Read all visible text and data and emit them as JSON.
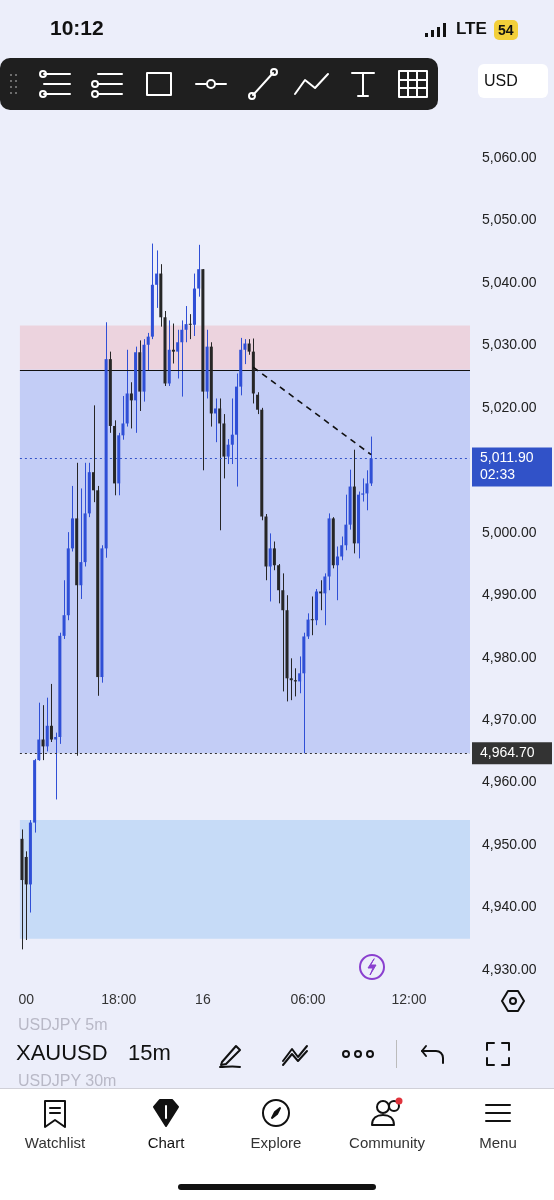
{
  "chart_data": {
    "type": "candlestick",
    "title": "XAUUSD",
    "subtitle": "15m",
    "categories": [
      null,
      "00",
      null,
      null,
      null,
      null,
      null,
      null,
      null,
      null,
      null,
      null,
      null,
      null,
      null,
      null,
      null,
      null,
      null,
      null,
      null,
      null,
      null,
      "18:00",
      null,
      null,
      null,
      null,
      null,
      null,
      null,
      null,
      null,
      null,
      null,
      null,
      null,
      null,
      null,
      null,
      null,
      null,
      null,
      "16",
      null,
      null,
      null,
      null,
      null,
      null,
      null,
      null,
      null,
      null,
      null,
      null,
      null,
      null,
      null,
      null,
      null,
      null,
      null,
      null,
      null,
      null,
      null,
      null,
      "06:00",
      null,
      null,
      null,
      null,
      null,
      null,
      null,
      null,
      null,
      null,
      null,
      null,
      null,
      null,
      null,
      null,
      null,
      null,
      null,
      null,
      null,
      null,
      null,
      "12:00",
      null,
      null,
      null,
      null,
      null,
      null,
      null,
      null,
      null,
      null,
      null,
      null,
      null,
      null
    ],
    "ohlc": [
      [
        4951.0,
        4952.5,
        4933.3,
        4944.4
      ],
      [
        4948.1,
        4949.0,
        4934.8,
        4943.7
      ],
      [
        4943.7,
        4954.0,
        4939.2,
        4953.6
      ],
      [
        4953.6,
        4963.8,
        4952.0,
        4963.6
      ],
      [
        4963.6,
        4972.8,
        4963.5,
        4966.9
      ],
      [
        4966.9,
        4972.4,
        4963.6,
        4965.8
      ],
      [
        4965.8,
        4973.6,
        4965.0,
        4969.1
      ],
      [
        4969.1,
        4975.8,
        4966.5,
        4966.9
      ],
      [
        4966.9,
        4968.0,
        4957.3,
        4967.3
      ],
      [
        4967.3,
        4984.0,
        4966.2,
        4983.5
      ],
      [
        4983.5,
        4992.4,
        4983.0,
        4986.8
      ],
      [
        4986.8,
        5000.1,
        4986.0,
        4997.5
      ],
      [
        4997.5,
        5007.5,
        4997.0,
        5002.3
      ],
      [
        5002.3,
        5011.2,
        4964.3,
        4991.6
      ],
      [
        4991.6,
        5007.1,
        4989.4,
        4995.3
      ],
      [
        4995.3,
        5011.2,
        4994.6,
        5003.1
      ],
      [
        5003.1,
        5011.2,
        5002.5,
        5009.7
      ],
      [
        5009.7,
        5020.4,
        5004.9,
        5006.8
      ],
      [
        5006.8,
        5007.5,
        4973.9,
        4976.9
      ],
      [
        4976.9,
        4998.0,
        4976.0,
        4997.5
      ],
      [
        4997.5,
        5033.7,
        4996.0,
        5027.8
      ],
      [
        5027.8,
        5029.0,
        5016.0,
        5017.1
      ],
      [
        5017.1,
        5018.0,
        5006.0,
        5007.9
      ],
      [
        5007.9,
        5016.0,
        5006.0,
        5015.6
      ],
      [
        5015.6,
        5021.9,
        5014.9,
        5017.5
      ],
      [
        5017.5,
        5029.3,
        5017.0,
        5022.3
      ],
      [
        5022.3,
        5024.1,
        5016.7,
        5021.2
      ],
      [
        5021.2,
        5029.8,
        5016.0,
        5028.9
      ],
      [
        5028.9,
        5030.8,
        5019.5,
        5022.6
      ],
      [
        5022.6,
        5031.0,
        5021.0,
        5030.1
      ],
      [
        5030.1,
        5032.0,
        5026.0,
        5031.4
      ],
      [
        5031.4,
        5046.3,
        5031.0,
        5039.7
      ],
      [
        5039.7,
        5045.2,
        5036.0,
        5041.5
      ],
      [
        5041.5,
        5043.0,
        5033.0,
        5034.5
      ],
      [
        5034.5,
        5035.5,
        5023.5,
        5023.9
      ],
      [
        5023.9,
        5034.0,
        5023.5,
        5029.3
      ],
      [
        5029.3,
        5033.5,
        5027.1,
        5029.0
      ],
      [
        5029.0,
        5032.5,
        5024.7,
        5030.5
      ],
      [
        5030.5,
        5034.0,
        5021.8,
        5032.5
      ],
      [
        5032.5,
        5036.3,
        5030.5,
        5033.4
      ],
      [
        5033.4,
        5035.0,
        5031.0,
        5033.3
      ],
      [
        5033.3,
        5041.5,
        5031.5,
        5039.1
      ],
      [
        5039.1,
        5046.1,
        5037.8,
        5042.2
      ],
      [
        5042.2,
        5042.2,
        5010.0,
        5022.6
      ],
      [
        5022.6,
        5032.5,
        5021.5,
        5029.8
      ],
      [
        5029.8,
        5030.5,
        5017.0,
        5019.1
      ],
      [
        5019.1,
        5021.5,
        5014.5,
        5019.9
      ],
      [
        5019.9,
        5021.5,
        5000.4,
        5017.5
      ],
      [
        5017.5,
        5019.0,
        5008.7,
        5012.2
      ],
      [
        5012.2,
        5015.0,
        5011.0,
        5014.1
      ],
      [
        5014.1,
        5021.5,
        5011.0,
        5015.7
      ],
      [
        5015.7,
        5025.5,
        5007.4,
        5023.4
      ],
      [
        5023.4,
        5031.2,
        5022.0,
        5029.3
      ],
      [
        5029.3,
        5031.0,
        5027.0,
        5030.3
      ],
      [
        5030.3,
        5031.0,
        5028.5,
        5029.0
      ],
      [
        5029.0,
        5031.1,
        5020.7,
        5022.3
      ],
      [
        5022.1,
        5022.5,
        5019.0,
        5019.7
      ],
      [
        5019.7,
        5020.0,
        5002.0,
        5002.6
      ],
      [
        5002.6,
        5003.0,
        4992.4,
        4994.6
      ],
      [
        4994.6,
        4999.9,
        4989.0,
        4997.5
      ],
      [
        4997.5,
        4998.6,
        4994.0,
        4994.8
      ],
      [
        4994.8,
        4995.0,
        4988.7,
        4990.8
      ],
      [
        4990.8,
        4993.5,
        4974.6,
        4987.6
      ],
      [
        4987.6,
        4990.0,
        4973.0,
        4976.7
      ],
      [
        4976.7,
        4979.9,
        4973.2,
        4976.4
      ],
      [
        4976.4,
        4978.3,
        4973.8,
        4976.2
      ],
      [
        4976.2,
        4980.2,
        4974.3,
        4977.5
      ],
      [
        4977.5,
        4984.0,
        4964.7,
        4983.4
      ],
      [
        4983.4,
        4987.1,
        4983.0,
        4986.1
      ],
      [
        4986.1,
        4989.8,
        4983.6,
        4986.0
      ],
      [
        4986.0,
        4991.0,
        4985.2,
        4990.6
      ],
      [
        4990.6,
        4992.4,
        4987.6,
        4990.3
      ],
      [
        4990.3,
        4993.5,
        4985.2,
        4993.0
      ],
      [
        4993.0,
        5003.1,
        4990.8,
        5002.3
      ],
      [
        5002.3,
        5002.5,
        4994.3,
        4994.8
      ],
      [
        4994.8,
        4997.8,
        4989.2,
        4996.2
      ],
      [
        4996.2,
        4999.4,
        4995.6,
        4998.0
      ],
      [
        4998.0,
        5006.1,
        4997.2,
        5001.3
      ],
      [
        5001.3,
        5010.1,
        5000.5,
        5007.4
      ],
      [
        5007.4,
        5013.3,
        4996.7,
        4998.3
      ],
      [
        4998.3,
        5006.6,
        4995.9,
        5006.1
      ],
      [
        5006.1,
        5008.7,
        5005.0,
        5006.3
      ],
      [
        5006.3,
        5010.0,
        5003.6,
        5007.9
      ],
      [
        5007.9,
        5015.4,
        5007.5,
        5011.9
      ],
      null,
      null,
      null,
      null,
      null,
      null,
      null,
      null,
      null,
      null,
      null,
      null,
      null,
      null,
      null,
      null,
      null,
      null,
      null,
      null,
      null,
      null,
      null
    ],
    "colors": [
      "#262626",
      "#262626",
      "#2f4fd6",
      "#2f4fd6",
      "#2f4fd6",
      "#262626",
      "#2f4fd6",
      "#262626",
      "#2f4fd6",
      "#2f4fd6",
      "#2f4fd6",
      "#2f4fd6",
      "#2f4fd6",
      "#262626",
      "#2f4fd6",
      "#2f4fd6",
      "#2f4fd6",
      "#262626",
      "#262626",
      "#2f4fd6",
      "#2f4fd6",
      "#262626",
      "#262626",
      "#2f4fd6",
      "#2f4fd6",
      "#2f4fd6",
      "#262626",
      "#2f4fd6",
      "#262626",
      "#2f4fd6",
      "#2f4fd6",
      "#2f4fd6",
      "#2f4fd6",
      "#262626",
      "#262626",
      "#2f4fd6",
      "#262626",
      "#2f4fd6",
      "#2f4fd6",
      "#2f4fd6",
      "#262626",
      "#2f4fd6",
      "#2f4fd6",
      "#262626",
      "#2f4fd6",
      "#262626",
      "#2f4fd6",
      "#262626",
      "#262626",
      "#2f4fd6",
      "#2f4fd6",
      "#2f4fd6",
      "#2f4fd6",
      "#2f4fd6",
      "#262626",
      "#262626",
      "#262626",
      "#262626",
      "#262626",
      "#2f4fd6",
      "#262626",
      "#262626",
      "#262626",
      "#262626",
      "#262626",
      "#262626",
      "#2f4fd6",
      "#2f4fd6",
      "#2f4fd6",
      "#262626",
      "#2f4fd6",
      "#262626",
      "#2f4fd6",
      "#2f4fd6",
      "#262626",
      "#2f4fd6",
      "#2f4fd6",
      "#2f4fd6",
      "#2f4fd6",
      "#262626",
      "#2f4fd6",
      "#2f4fd6",
      "#2f4fd6",
      "#2f4fd6",
      null,
      null,
      null,
      null,
      null,
      null,
      null,
      null,
      null,
      null,
      null,
      null,
      null,
      null,
      null,
      null,
      null,
      null,
      null,
      null,
      null,
      null,
      null
    ],
    "series": [
      {
        "type": "line",
        "color": "#111111",
        "line_style": "dashed",
        "values": [
          null,
          null,
          null,
          null,
          null,
          null,
          null,
          null,
          null,
          null,
          null,
          null,
          null,
          null,
          null,
          null,
          null,
          null,
          null,
          null,
          null,
          null,
          null,
          null,
          null,
          null,
          null,
          null,
          null,
          null,
          null,
          null,
          null,
          null,
          null,
          null,
          null,
          null,
          null,
          null,
          null,
          null,
          null,
          null,
          null,
          null,
          null,
          null,
          null,
          null,
          null,
          null,
          null,
          null,
          null,
          5026.5,
          null,
          null,
          null,
          null,
          null,
          null,
          null,
          null,
          null,
          null,
          null,
          null,
          null,
          null,
          null,
          null,
          null,
          null,
          null,
          null,
          null,
          null,
          null,
          null,
          null,
          null,
          null,
          5012.5,
          null,
          null,
          null,
          null,
          null,
          null,
          null,
          null,
          null,
          null,
          null,
          null,
          null,
          null,
          null,
          null,
          null,
          null,
          null,
          null,
          null,
          null,
          null
        ]
      }
    ],
    "ylim": [
      4930,
      5060
    ],
    "yticks": [
      {
        "value": 4930,
        "label": "4,930.00"
      },
      {
        "value": 4940,
        "label": "4,940.00"
      },
      {
        "value": 4950,
        "label": "4,950.00"
      },
      {
        "value": 4960,
        "label": "4,960.00"
      },
      {
        "value": 4970,
        "label": "4,970.00"
      },
      {
        "value": 4980,
        "label": "4,980.00"
      },
      {
        "value": 4990,
        "label": "4,990.00"
      },
      {
        "value": 5000,
        "label": "5,000.00"
      },
      {
        "value": 5020,
        "label": "5,020.00"
      },
      {
        "value": 5030,
        "label": "5,030.00"
      },
      {
        "value": 5040,
        "label": "5,040.00"
      },
      {
        "value": 5050,
        "label": "5,050.00"
      },
      {
        "value": 5060,
        "label": "5,060.00"
      }
    ],
    "grid": false,
    "legend": false,
    "bands": [
      {
        "axis": "y",
        "from": 5026.1,
        "to": 5033.2,
        "color": "#ecd3de"
      },
      {
        "axis": "y",
        "from": 4964.7,
        "to": 5026.1,
        "color": "#c3cdf6"
      },
      {
        "axis": "y",
        "from": 4935.0,
        "to": 4954.0,
        "color": "#c6dbf7"
      }
    ],
    "ref_lines": [
      {
        "axis": "y",
        "value": 5011.9,
        "label": "5,011.90",
        "color": "#3152c8",
        "line_style": "dotted"
      },
      {
        "axis": "y",
        "value": 4964.7,
        "label": "4,964.70",
        "color": "#333333",
        "line_style": "dotted"
      },
      {
        "axis": "y",
        "value": 5026.1,
        "label": null,
        "color": "#111111",
        "line_style": "solid"
      }
    ],
    "annotations": [
      "02:33",
      "USD",
      "10:12",
      "LTE",
      "54",
      "USDJPY 5m",
      "USDJPY 30m",
      "Watchlist",
      "Chart",
      "Explore",
      "Community",
      "Menu"
    ]
  }
}
